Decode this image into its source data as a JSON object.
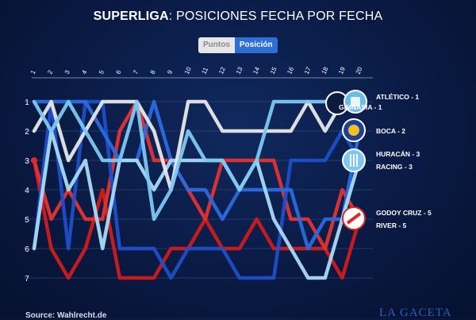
{
  "header": {
    "title_bold": "SUPERLIGA",
    "title_rest": ": POSICIONES FECHA POR FECHA"
  },
  "toggle": {
    "puntos_label": "Puntos",
    "posicion_label": "Posición"
  },
  "footer": {
    "source": "Source: Wahlrecht.de",
    "brand": "LA GACETA"
  },
  "chart_data": {
    "type": "line",
    "title": "SUPERLIGA: POSICIONES FECHA POR FECHA",
    "x": [
      1,
      2,
      3,
      4,
      5,
      6,
      7,
      8,
      9,
      10,
      11,
      12,
      13,
      14,
      15,
      16,
      17,
      18,
      19,
      20
    ],
    "x_ticks": [
      "1",
      "2",
      "3",
      "4",
      "5",
      "6",
      "7",
      "8",
      "9",
      "10",
      "11",
      "12",
      "13",
      "14",
      "15",
      "16",
      "17",
      "18",
      "19",
      "20"
    ],
    "ylim": [
      1,
      7
    ],
    "y_reversed": true,
    "y_ticks": [
      "1",
      "2",
      "3",
      "4",
      "5",
      "6",
      "7"
    ],
    "grid": true,
    "series": [
      {
        "name": "RIVER",
        "color": "#cf1b1b",
        "values": [
          3,
          6,
          7,
          6,
          4,
          7,
          7,
          7,
          6,
          6,
          5,
          6,
          6,
          5,
          6,
          6,
          6,
          6,
          7,
          5
        ]
      },
      {
        "name": "GODOY CRUZ",
        "color": "#e53232",
        "values": [
          3,
          5,
          4,
          5,
          5,
          2,
          1,
          3,
          3,
          4,
          5,
          3,
          3,
          3,
          3,
          5,
          5,
          6,
          4,
          5
        ]
      },
      {
        "name": "RACING",
        "color": "#1f4fc8",
        "values": [
          6,
          1,
          6,
          1,
          1,
          6,
          6,
          6,
          7,
          6,
          6,
          6,
          7,
          7,
          7,
          3,
          3,
          3,
          2,
          3
        ]
      },
      {
        "name": "BOCA",
        "color": "#2a6ae0",
        "values": [
          1,
          1,
          1,
          1,
          2,
          3,
          3,
          1,
          3,
          4,
          4,
          5,
          4,
          4,
          4,
          4,
          6,
          5,
          5,
          2
        ]
      },
      {
        "name": "HURACÁN",
        "color": "#a8daf5",
        "values": [
          6,
          2,
          4,
          3,
          6,
          3,
          3,
          4,
          3,
          3,
          3,
          3,
          4,
          3,
          5,
          6,
          7,
          7,
          5,
          3
        ]
      },
      {
        "name": "GIMNASIA",
        "color": "#e8e8e8",
        "values": [
          2,
          1,
          3,
          2,
          1,
          1,
          1,
          2,
          4,
          1,
          1,
          2,
          2,
          2,
          2,
          2,
          1,
          2,
          1,
          1
        ]
      },
      {
        "name": "ATLÉTICO",
        "color": "#7cc8f2",
        "values": [
          1,
          2,
          1,
          2,
          3,
          3,
          1,
          5,
          4,
          2,
          3,
          3,
          4,
          3,
          1,
          1,
          1,
          1,
          1,
          1
        ]
      }
    ],
    "end_labels": [
      {
        "text": "ATLÉTICO - 1",
        "position": 1
      },
      {
        "text": "GIMNASIA - 1",
        "position": 1
      },
      {
        "text": "BOCA - 2",
        "position": 2
      },
      {
        "text": "HURACÁN - 3",
        "position": 3
      },
      {
        "text": "RACING - 3",
        "position": 3
      },
      {
        "text": "GODOY CRUZ - 5",
        "position": 5
      },
      {
        "text": "RIVER - 5",
        "position": 5
      }
    ]
  }
}
